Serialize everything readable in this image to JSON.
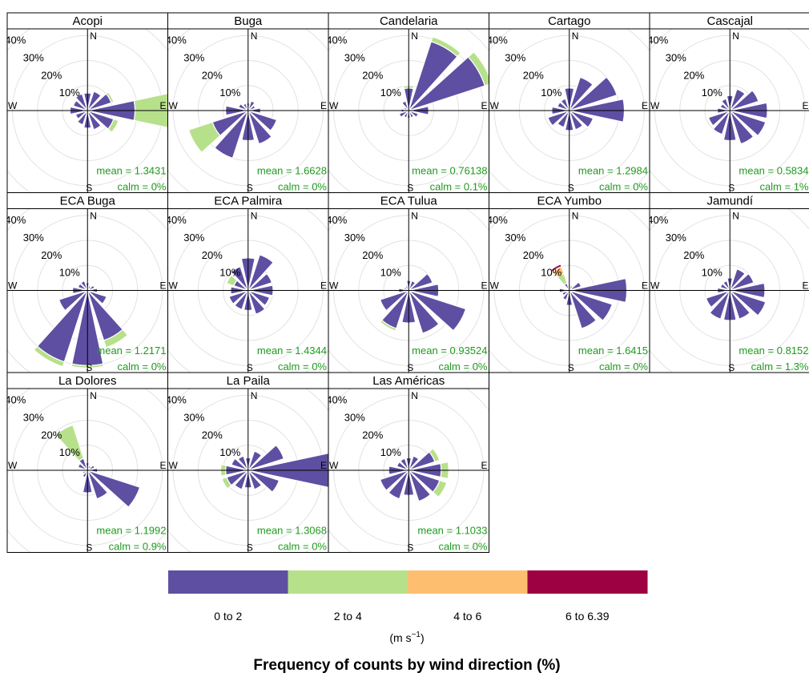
{
  "chart_data": {
    "type": "windrose",
    "title": "Frequency of counts by wind direction (%)",
    "unit_label": "(m s⁻¹)",
    "radial_ticks": [
      "10%",
      "20%",
      "30%",
      "40%"
    ],
    "compass": {
      "N": "N",
      "E": "E",
      "S": "S",
      "W": "W"
    },
    "directions_deg": [
      0,
      30,
      60,
      90,
      120,
      150,
      180,
      210,
      240,
      270,
      300,
      330
    ],
    "legend": [
      {
        "label": "0 to 2",
        "color": "#5E4FA2"
      },
      {
        "label": "2 to 4",
        "color": "#B7E08B"
      },
      {
        "label": "4 to 6",
        "color": "#FDBF6F"
      },
      {
        "label": "6 to 6.39",
        "color": "#9E0142"
      }
    ],
    "stations": [
      {
        "name": "Acopi",
        "mean": "mean = 1.3431",
        "calm": "calm = 0%",
        "bins": [
          [
            7,
            0
          ],
          [
            8,
            0
          ],
          [
            10,
            1
          ],
          [
            19,
            20
          ],
          [
            11,
            2
          ],
          [
            8,
            0
          ],
          [
            7,
            0
          ],
          [
            6,
            0
          ],
          [
            5,
            0
          ],
          [
            7,
            0
          ],
          [
            6,
            0
          ],
          [
            7,
            0
          ]
        ]
      },
      {
        "name": "Buga",
        "mean": "mean = 1.6628",
        "calm": "calm = 0%",
        "bins": [
          [
            3,
            0
          ],
          [
            4,
            0
          ],
          [
            3,
            0
          ],
          [
            5,
            0
          ],
          [
            12,
            0
          ],
          [
            14,
            0
          ],
          [
            12,
            0
          ],
          [
            20,
            0
          ],
          [
            15,
            10
          ],
          [
            9,
            0
          ],
          [
            4,
            0
          ],
          [
            3,
            0
          ]
        ]
      },
      {
        "name": "Candelaria",
        "mean": "mean = 0.76138",
        "calm": "calm = 0.1%",
        "bins": [
          [
            9,
            1
          ],
          [
            29,
            2
          ],
          [
            32,
            3
          ],
          [
            8,
            0
          ],
          [
            4,
            0
          ],
          [
            3,
            0
          ],
          [
            3,
            0
          ],
          [
            3,
            0
          ],
          [
            4,
            0
          ],
          [
            3,
            0
          ],
          [
            2,
            0
          ],
          [
            4,
            0
          ]
        ]
      },
      {
        "name": "Cartago",
        "mean": "mean = 1.2984",
        "calm": "calm = 0%",
        "bins": [
          [
            9,
            0
          ],
          [
            14,
            0
          ],
          [
            20,
            0
          ],
          [
            22,
            0
          ],
          [
            10,
            0
          ],
          [
            8,
            0
          ],
          [
            8,
            0
          ],
          [
            7,
            0
          ],
          [
            9,
            0
          ],
          [
            7,
            0
          ],
          [
            5,
            0
          ],
          [
            5,
            0
          ]
        ]
      },
      {
        "name": "Cascajal",
        "mean": "mean = 0.5834",
        "calm": "calm = 1%",
        "bins": [
          [
            6,
            0
          ],
          [
            9,
            0
          ],
          [
            12,
            0
          ],
          [
            15,
            0
          ],
          [
            15,
            0
          ],
          [
            14,
            0
          ],
          [
            12,
            0
          ],
          [
            10,
            0
          ],
          [
            9,
            0
          ],
          [
            5,
            0
          ],
          [
            4,
            0
          ],
          [
            5,
            0
          ]
        ]
      },
      {
        "name": "ECA Buga",
        "mean": "mean = 1.2171",
        "calm": "calm = 0%",
        "bins": [
          [
            3,
            0
          ],
          [
            2,
            0
          ],
          [
            3,
            0
          ],
          [
            4,
            0
          ],
          [
            8,
            0
          ],
          [
            21,
            3
          ],
          [
            30,
            1
          ],
          [
            30,
            2
          ],
          [
            12,
            0
          ],
          [
            6,
            0
          ],
          [
            4,
            0
          ],
          [
            4,
            0
          ]
        ]
      },
      {
        "name": "ECA Palmira",
        "mean": "mean = 1.4344",
        "calm": "calm = 0%",
        "bins": [
          [
            13,
            0
          ],
          [
            15,
            0
          ],
          [
            10,
            0
          ],
          [
            10,
            0
          ],
          [
            9,
            0
          ],
          [
            10,
            0
          ],
          [
            8,
            0
          ],
          [
            8,
            0
          ],
          [
            8,
            0
          ],
          [
            7,
            0
          ],
          [
            6,
            3
          ],
          [
            10,
            0
          ]
        ]
      },
      {
        "name": "ECA Tulua",
        "mean": "mean = 0.93524",
        "calm": "calm = 0%",
        "bins": [
          [
            4,
            0
          ],
          [
            4,
            0
          ],
          [
            10,
            0
          ],
          [
            12,
            0
          ],
          [
            24,
            0
          ],
          [
            18,
            0
          ],
          [
            13,
            0
          ],
          [
            16,
            1
          ],
          [
            12,
            0
          ],
          [
            4,
            0
          ],
          [
            2,
            0
          ],
          [
            2,
            0
          ]
        ]
      },
      {
        "name": "ECA Yumbo",
        "mean": "mean = 1.6415",
        "calm": "calm = 0%",
        "bins": [
          [
            2,
            0
          ],
          [
            2,
            0
          ],
          [
            5,
            0
          ],
          [
            23,
            0
          ],
          [
            18,
            0
          ],
          [
            16,
            0
          ],
          [
            6,
            0
          ],
          [
            4,
            0
          ],
          [
            3,
            0
          ],
          [
            4,
            0
          ],
          [
            1,
            0
          ],
          [
            3,
            4,
            3,
            1
          ]
        ]
      },
      {
        "name": "Jamundí",
        "mean": "mean = 0.8152",
        "calm": "calm = 1.3%",
        "bins": [
          [
            5,
            0
          ],
          [
            9,
            0
          ],
          [
            10,
            0
          ],
          [
            14,
            0
          ],
          [
            15,
            0
          ],
          [
            12,
            0
          ],
          [
            12,
            0
          ],
          [
            12,
            0
          ],
          [
            10,
            0
          ],
          [
            5,
            0
          ],
          [
            4,
            0
          ],
          [
            4,
            0
          ]
        ]
      },
      {
        "name": "La Dolores",
        "mean": "mean = 1.1992",
        "calm": "calm = 0.9%",
        "bins": [
          [
            3,
            0
          ],
          [
            2,
            0
          ],
          [
            3,
            0
          ],
          [
            4,
            0
          ],
          [
            22,
            0
          ],
          [
            12,
            0
          ],
          [
            9,
            0
          ],
          [
            3,
            0
          ],
          [
            2,
            0
          ],
          [
            2,
            0
          ],
          [
            4,
            0
          ],
          [
            5,
            14
          ]
        ]
      },
      {
        "name": "La  Paila",
        "mean": "mean = 1.3068",
        "calm": "calm = 0%",
        "bins": [
          [
            5,
            0
          ],
          [
            8,
            0
          ],
          [
            15,
            0
          ],
          [
            35,
            0
          ],
          [
            13,
            0
          ],
          [
            8,
            0
          ],
          [
            7,
            0
          ],
          [
            8,
            0
          ],
          [
            9,
            2
          ],
          [
            9,
            2
          ],
          [
            7,
            0
          ],
          [
            6,
            0
          ]
        ]
      },
      {
        "name": "Las Américas",
        "mean": "mean = 1.1033",
        "calm": "calm = 0%",
        "bins": [
          [
            5,
            0
          ],
          [
            6,
            0
          ],
          [
            11,
            2
          ],
          [
            13,
            3
          ],
          [
            13,
            3
          ],
          [
            13,
            0
          ],
          [
            10,
            0
          ],
          [
            12,
            0
          ],
          [
            12,
            0
          ],
          [
            8,
            0
          ],
          [
            5,
            0
          ],
          [
            5,
            0
          ]
        ]
      }
    ]
  }
}
